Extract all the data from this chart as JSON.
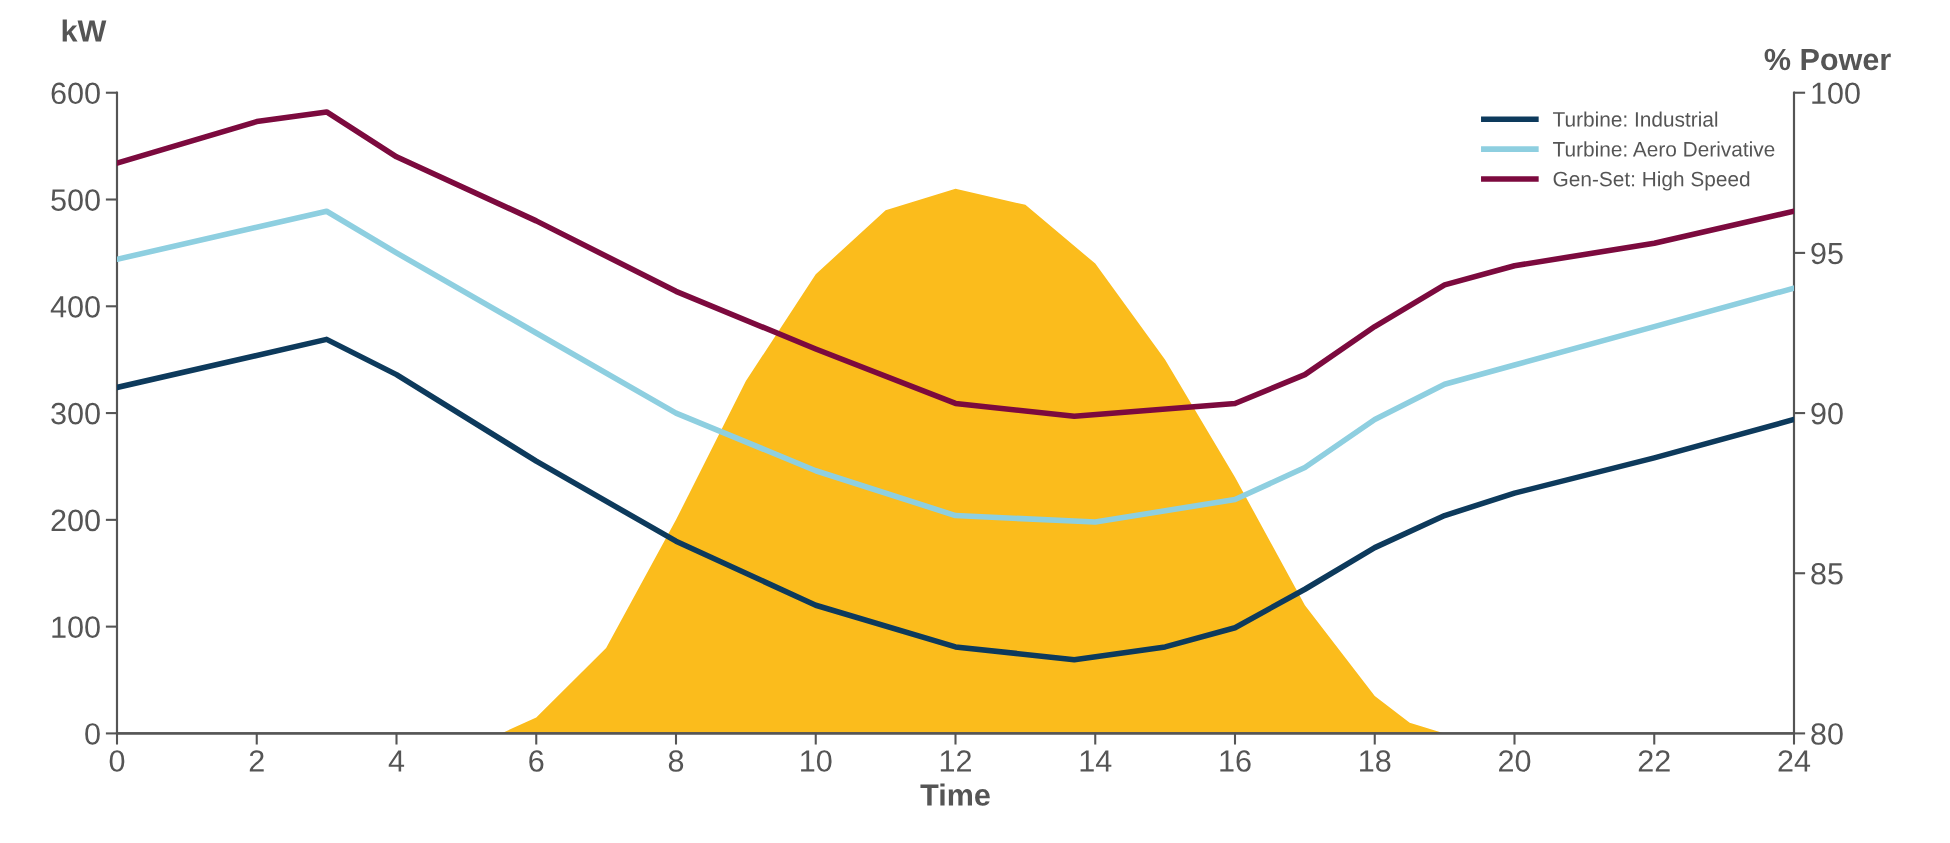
{
  "chart_data": {
    "type": "line",
    "xlabel": "Time",
    "ylabel": "kW",
    "y2label": "% Power",
    "xlim": [
      0,
      24
    ],
    "xticks": [
      0,
      2,
      4,
      6,
      8,
      10,
      12,
      14,
      16,
      18,
      20,
      22,
      24
    ],
    "ylim": [
      0,
      600
    ],
    "yticks": [
      0,
      100,
      200,
      300,
      400,
      500,
      600
    ],
    "y2lim": [
      80,
      100
    ],
    "y2ticks": [
      80,
      85,
      90,
      95,
      100
    ],
    "grid": false,
    "legend": "top right",
    "marker": "none",
    "line_style": "solid",
    "series": [
      {
        "type": "area",
        "color": "#fbbc1c",
        "x": [
          5.5,
          6,
          7,
          8,
          9,
          10,
          11,
          12,
          13,
          14,
          15,
          16,
          17,
          18,
          18.5,
          19
        ],
        "values": [
          0,
          15,
          80,
          200,
          330,
          430,
          490,
          510,
          495,
          440,
          350,
          240,
          120,
          35,
          10,
          0
        ]
      },
      {
        "name": "Turbine: Industrial",
        "axis": "y2",
        "color": "#0d3a5c",
        "x": [
          0,
          3,
          4,
          6,
          8,
          10,
          12,
          13.7,
          15,
          16,
          17,
          18,
          19,
          20,
          22,
          24
        ],
        "values": [
          90.8,
          92.3,
          91.2,
          88.5,
          86.0,
          84.0,
          82.7,
          82.3,
          82.7,
          83.3,
          84.5,
          85.8,
          86.8,
          87.5,
          88.6,
          89.8
        ]
      },
      {
        "name": "Turbine: Aero Derivative",
        "axis": "y2",
        "color": "#8ecfe0",
        "x": [
          0,
          3,
          4,
          6,
          8,
          10,
          12,
          14,
          16,
          17,
          18,
          19,
          20,
          22,
          24
        ],
        "values": [
          94.8,
          96.3,
          95.0,
          92.5,
          90.0,
          88.2,
          86.8,
          86.6,
          87.3,
          88.3,
          89.8,
          90.9,
          91.5,
          92.7,
          93.9
        ]
      },
      {
        "name": "Gen-Set: High Speed",
        "axis": "y2",
        "color": "#7c0a3e",
        "x": [
          0,
          2,
          3,
          4,
          6,
          8,
          10,
          12,
          13.7,
          16,
          17,
          18,
          19,
          20,
          22,
          24
        ],
        "values": [
          97.8,
          99.1,
          99.4,
          98.0,
          96.0,
          93.8,
          92.0,
          90.3,
          89.9,
          90.3,
          91.2,
          92.7,
          94.0,
          94.6,
          95.3,
          96.3
        ]
      }
    ]
  }
}
